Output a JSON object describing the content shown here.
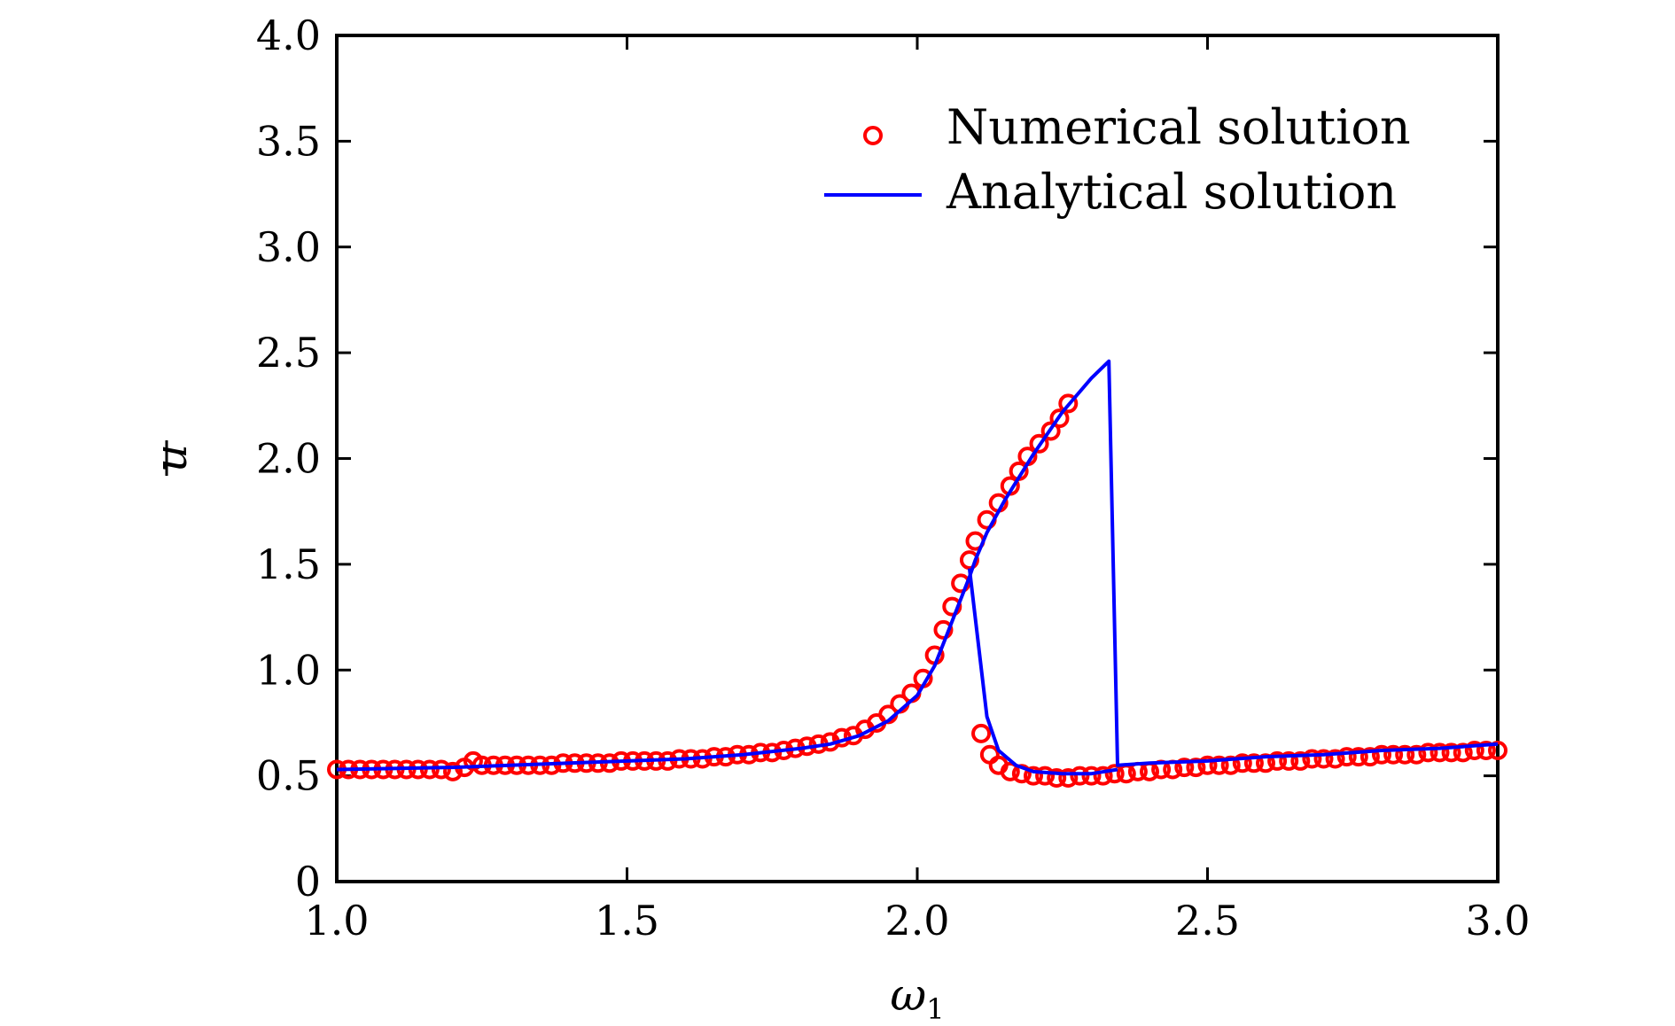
{
  "chart_data": {
    "type": "line",
    "title": "",
    "xlabel": "ω",
    "xlabel_sub": "1",
    "ylabel": "u",
    "xlim": [
      1.0,
      3.0
    ],
    "ylim": [
      0,
      4.0
    ],
    "xticks": [
      1.0,
      1.5,
      2.0,
      2.5,
      3.0
    ],
    "xtick_labels": [
      "1.0",
      "1.5",
      "2.0",
      "2.5",
      "3.0"
    ],
    "yticks": [
      0,
      0.5,
      1.0,
      1.5,
      2.0,
      2.5,
      3.0,
      3.5,
      4.0
    ],
    "ytick_labels": [
      "0",
      "0.5",
      "1.0",
      "1.5",
      "2.0",
      "2.5",
      "3.0",
      "3.5",
      "4.0"
    ],
    "grid": false,
    "legend_position": "top-right",
    "series": [
      {
        "name": "Numerical solution",
        "style": "markers",
        "color": "#ff0000",
        "points": [
          [
            1.0,
            0.53
          ],
          [
            1.02,
            0.53
          ],
          [
            1.04,
            0.53
          ],
          [
            1.06,
            0.53
          ],
          [
            1.08,
            0.53
          ],
          [
            1.1,
            0.53
          ],
          [
            1.12,
            0.53
          ],
          [
            1.14,
            0.53
          ],
          [
            1.16,
            0.53
          ],
          [
            1.18,
            0.53
          ],
          [
            1.2,
            0.52
          ],
          [
            1.22,
            0.54
          ],
          [
            1.235,
            0.57
          ],
          [
            1.25,
            0.55
          ],
          [
            1.27,
            0.55
          ],
          [
            1.29,
            0.55
          ],
          [
            1.31,
            0.55
          ],
          [
            1.33,
            0.55
          ],
          [
            1.35,
            0.55
          ],
          [
            1.37,
            0.55
          ],
          [
            1.39,
            0.56
          ],
          [
            1.41,
            0.56
          ],
          [
            1.43,
            0.56
          ],
          [
            1.45,
            0.56
          ],
          [
            1.47,
            0.56
          ],
          [
            1.49,
            0.57
          ],
          [
            1.51,
            0.57
          ],
          [
            1.53,
            0.57
          ],
          [
            1.55,
            0.57
          ],
          [
            1.57,
            0.57
          ],
          [
            1.59,
            0.58
          ],
          [
            1.61,
            0.58
          ],
          [
            1.63,
            0.58
          ],
          [
            1.65,
            0.59
          ],
          [
            1.67,
            0.59
          ],
          [
            1.69,
            0.6
          ],
          [
            1.71,
            0.6
          ],
          [
            1.73,
            0.61
          ],
          [
            1.75,
            0.61
          ],
          [
            1.77,
            0.62
          ],
          [
            1.79,
            0.63
          ],
          [
            1.81,
            0.64
          ],
          [
            1.83,
            0.65
          ],
          [
            1.85,
            0.66
          ],
          [
            1.87,
            0.68
          ],
          [
            1.89,
            0.69
          ],
          [
            1.91,
            0.72
          ],
          [
            1.93,
            0.75
          ],
          [
            1.95,
            0.79
          ],
          [
            1.97,
            0.84
          ],
          [
            1.99,
            0.89
          ],
          [
            2.01,
            0.96
          ],
          [
            2.03,
            1.07
          ],
          [
            2.045,
            1.19
          ],
          [
            2.06,
            1.3
          ],
          [
            2.075,
            1.41
          ],
          [
            2.09,
            1.52
          ],
          [
            2.1,
            1.61
          ],
          [
            2.12,
            1.71
          ],
          [
            2.14,
            1.79
          ],
          [
            2.16,
            1.87
          ],
          [
            2.175,
            1.94
          ],
          [
            2.19,
            2.01
          ],
          [
            2.21,
            2.07
          ],
          [
            2.23,
            2.13
          ],
          [
            2.245,
            2.19
          ],
          [
            2.26,
            2.26
          ],
          [
            2.11,
            0.7
          ],
          [
            2.125,
            0.6
          ],
          [
            2.14,
            0.55
          ],
          [
            2.16,
            0.52
          ],
          [
            2.18,
            0.51
          ],
          [
            2.2,
            0.5
          ],
          [
            2.22,
            0.5
          ],
          [
            2.24,
            0.49
          ],
          [
            2.26,
            0.49
          ],
          [
            2.28,
            0.5
          ],
          [
            2.3,
            0.5
          ],
          [
            2.32,
            0.5
          ],
          [
            2.34,
            0.51
          ],
          [
            2.36,
            0.51
          ],
          [
            2.38,
            0.52
          ],
          [
            2.4,
            0.52
          ],
          [
            2.42,
            0.53
          ],
          [
            2.44,
            0.53
          ],
          [
            2.46,
            0.54
          ],
          [
            2.48,
            0.54
          ],
          [
            2.5,
            0.55
          ],
          [
            2.52,
            0.55
          ],
          [
            2.54,
            0.55
          ],
          [
            2.56,
            0.56
          ],
          [
            2.58,
            0.56
          ],
          [
            2.6,
            0.56
          ],
          [
            2.62,
            0.57
          ],
          [
            2.64,
            0.57
          ],
          [
            2.66,
            0.57
          ],
          [
            2.68,
            0.58
          ],
          [
            2.7,
            0.58
          ],
          [
            2.72,
            0.58
          ],
          [
            2.74,
            0.59
          ],
          [
            2.76,
            0.59
          ],
          [
            2.78,
            0.59
          ],
          [
            2.8,
            0.6
          ],
          [
            2.82,
            0.6
          ],
          [
            2.84,
            0.6
          ],
          [
            2.86,
            0.6
          ],
          [
            2.88,
            0.61
          ],
          [
            2.9,
            0.61
          ],
          [
            2.92,
            0.61
          ],
          [
            2.94,
            0.61
          ],
          [
            2.96,
            0.62
          ],
          [
            2.98,
            0.62
          ],
          [
            3.0,
            0.62
          ]
        ]
      },
      {
        "name": "Analytical solution",
        "style": "line",
        "color": "#0000ff",
        "points": [
          [
            1.0,
            0.53
          ],
          [
            1.2,
            0.54
          ],
          [
            1.4,
            0.56
          ],
          [
            1.6,
            0.58
          ],
          [
            1.7,
            0.6
          ],
          [
            1.8,
            0.63
          ],
          [
            1.85,
            0.65
          ],
          [
            1.9,
            0.69
          ],
          [
            1.95,
            0.76
          ],
          [
            2.0,
            0.88
          ],
          [
            2.03,
            1.02
          ],
          [
            2.05,
            1.16
          ],
          [
            2.07,
            1.3
          ],
          [
            2.09,
            1.44
          ],
          [
            2.1,
            1.52
          ],
          [
            2.12,
            1.65
          ],
          [
            2.15,
            1.8
          ],
          [
            2.2,
            2.02
          ],
          [
            2.25,
            2.22
          ],
          [
            2.3,
            2.38
          ],
          [
            2.33,
            2.46
          ],
          [
            2.345,
            0.55
          ],
          [
            2.4,
            0.56
          ],
          [
            2.5,
            0.57
          ],
          [
            2.6,
            0.59
          ],
          [
            2.7,
            0.6
          ],
          [
            2.8,
            0.62
          ],
          [
            2.9,
            0.63
          ],
          [
            3.0,
            0.65
          ]
        ]
      },
      {
        "name": "",
        "style": "line",
        "color": "#0000ff",
        "points": [
          [
            2.09,
            1.48
          ],
          [
            2.12,
            0.78
          ],
          [
            2.14,
            0.62
          ],
          [
            2.17,
            0.55
          ],
          [
            2.2,
            0.52
          ],
          [
            2.25,
            0.51
          ],
          [
            2.3,
            0.51
          ],
          [
            2.345,
            0.53
          ]
        ]
      }
    ]
  }
}
